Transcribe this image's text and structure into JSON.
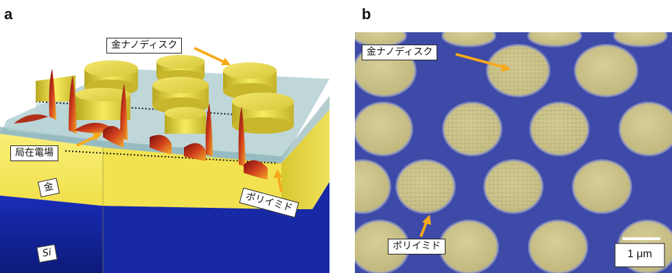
{
  "figure": {
    "panel_a": {
      "letter": "a",
      "labels": {
        "nanodisk": "金ナノディスク",
        "local_field": "局在電場",
        "gold": "金",
        "polyimide": "ポリイミド",
        "silicon": "Si"
      }
    },
    "panel_b": {
      "letter": "b",
      "labels": {
        "nanodisk": "金ナノディスク",
        "polyimide": "ポリイミド",
        "scale_bar": "1 μm"
      }
    },
    "colors": {
      "gold": "#f3e35a",
      "silicon": "#1a2db0",
      "polyimide": "#a9c9cc",
      "sem_background": "#3e4aa8",
      "sem_disk": "#c9c18a",
      "arrow": "#f7a91b",
      "field": "#c0281a"
    }
  }
}
